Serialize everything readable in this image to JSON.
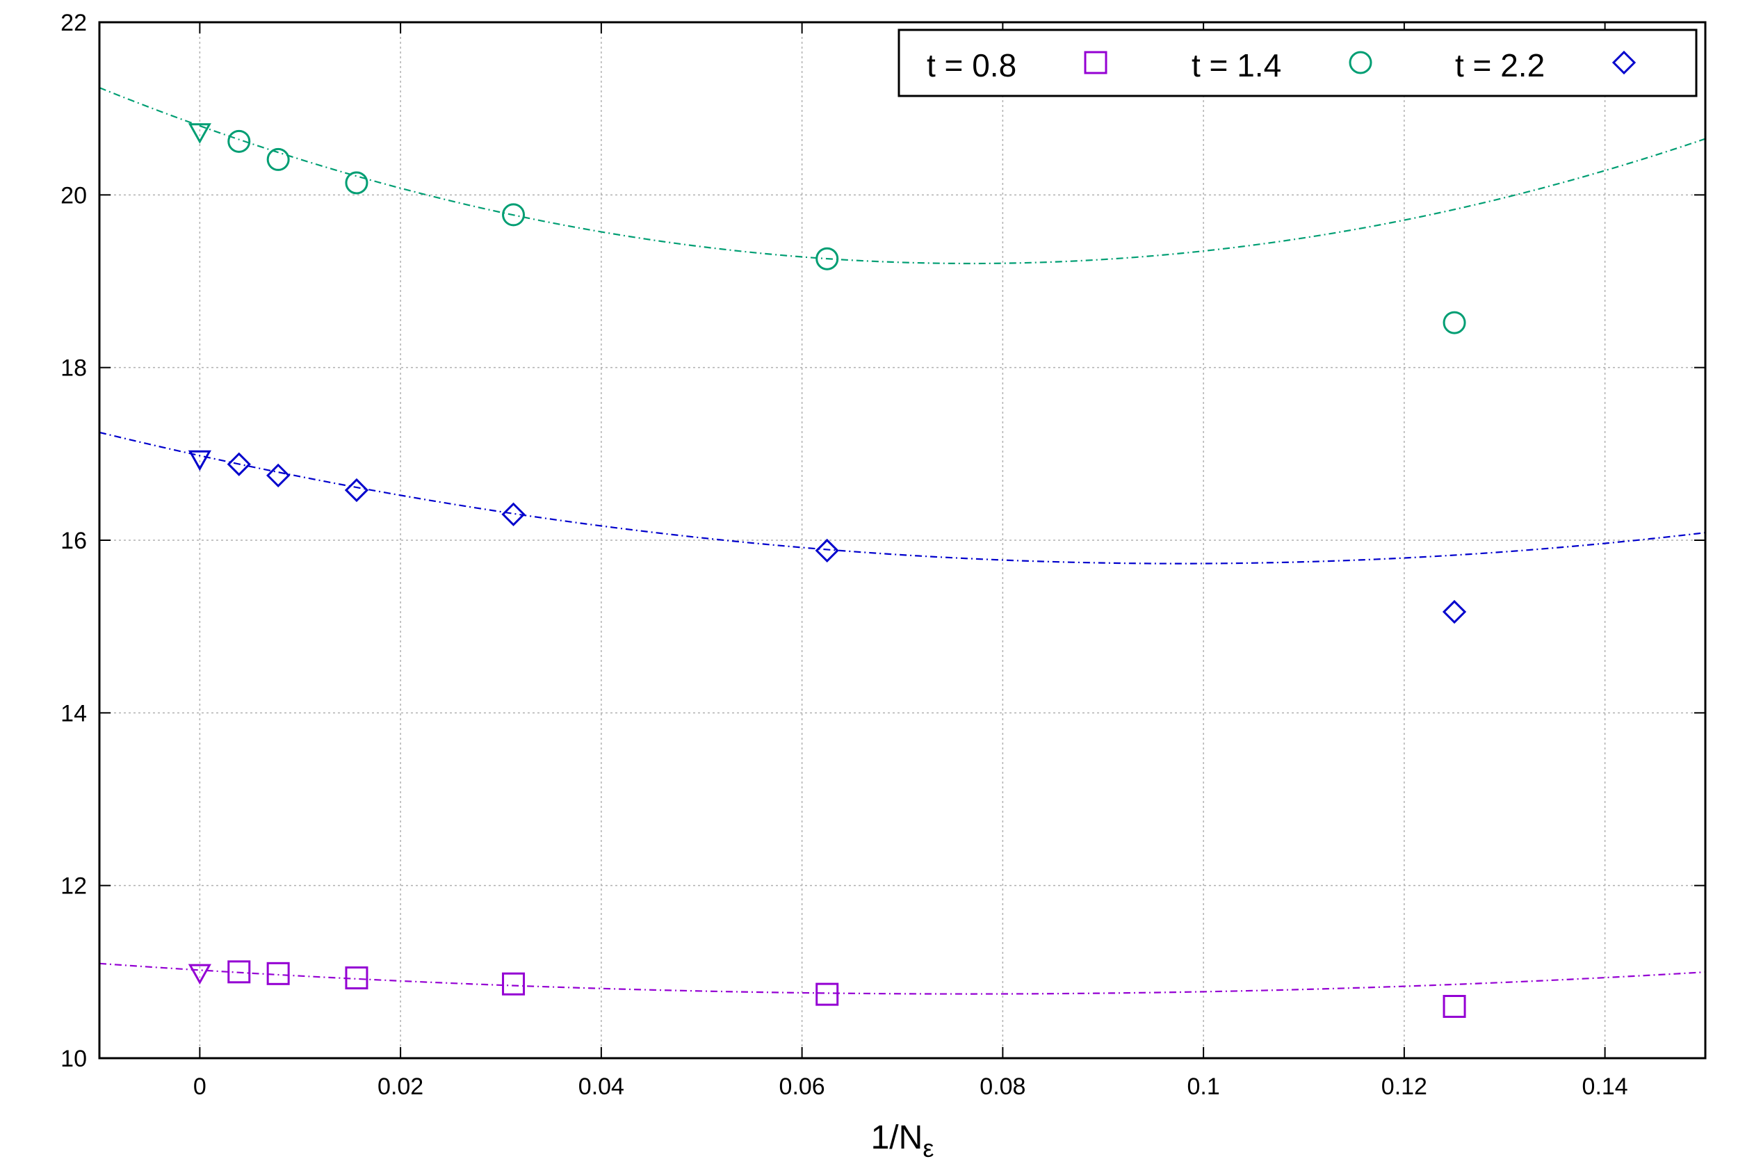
{
  "chart_data": {
    "type": "scatter",
    "xlabel": "1/N",
    "xlabel_subscript": "ε",
    "ylabel": "",
    "xlim": [
      -0.01,
      0.15
    ],
    "ylim": [
      10,
      22
    ],
    "xticks": [
      0,
      0.02,
      0.04,
      0.06,
      0.08,
      0.1,
      0.12,
      0.14
    ],
    "xtick_labels": [
      "0",
      "0.02",
      "0.04",
      "0.06",
      "0.08",
      "0.1",
      "0.12",
      "0.14"
    ],
    "yticks": [
      10,
      12,
      14,
      16,
      18,
      20,
      22
    ],
    "ytick_labels": [
      "10",
      "12",
      "14",
      "16",
      "18",
      "20",
      "22"
    ],
    "grid": true,
    "legend_position": "top-right",
    "series": [
      {
        "name": "t = 0.8",
        "marker": "square",
        "color": "#9400d3",
        "x": [
          0.00390625,
          0.0078125,
          0.015625,
          0.03125,
          0.0625,
          0.125
        ],
        "y": [
          11.0,
          10.98,
          10.93,
          10.86,
          10.74,
          10.6
        ],
        "extrapolated": {
          "x": 0,
          "y": 10.99
        },
        "fit": {
          "a": 11.02,
          "b": -7.2,
          "c": 47
        }
      },
      {
        "name": "t = 1.4",
        "marker": "circle",
        "color": "#009e73",
        "x": [
          0.00390625,
          0.0078125,
          0.015625,
          0.03125,
          0.0625,
          0.125
        ],
        "y": [
          20.62,
          20.41,
          20.14,
          19.77,
          19.26,
          18.52
        ],
        "extrapolated": {
          "x": 0,
          "y": 20.73
        },
        "fit": {
          "a": 20.8,
          "b": -41.5,
          "c": 270
        }
      },
      {
        "name": "t = 2.2",
        "marker": "diamond",
        "color": "#0000cc",
        "x": [
          0.00390625,
          0.0078125,
          0.015625,
          0.03125,
          0.0625,
          0.125
        ],
        "y": [
          16.88,
          16.75,
          16.58,
          16.3,
          15.88,
          15.17
        ],
        "extrapolated": {
          "x": 0,
          "y": 16.94
        },
        "fit": {
          "a": 16.98,
          "b": -25.6,
          "c": 131
        }
      }
    ]
  }
}
